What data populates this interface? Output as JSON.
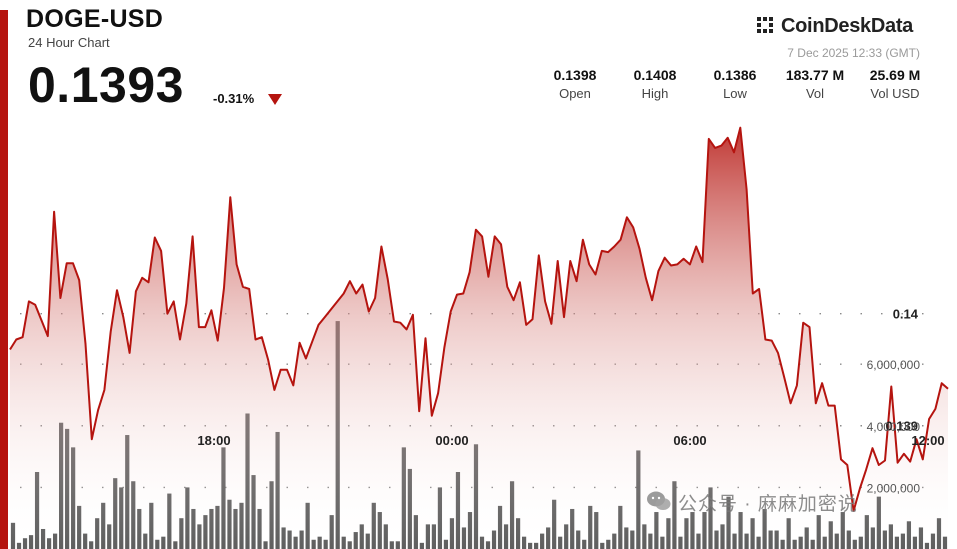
{
  "header": {
    "symbol": "DOGE-USD",
    "subtitle": "24 Hour Chart",
    "price": "0.1393",
    "change": "-0.31%"
  },
  "brand": {
    "name": "CoinDeskData",
    "timestamp": "7 Dec 2025 12:33 (GMT)"
  },
  "stats": [
    {
      "value": "0.1398",
      "label": "Open"
    },
    {
      "value": "0.1408",
      "label": "High"
    },
    {
      "value": "0.1386",
      "label": "Low"
    },
    {
      "value": "183.77 M",
      "label": "Vol"
    },
    {
      "value": "25.69 M",
      "label": "Vol USD"
    }
  ],
  "colors": {
    "accent": "#b5140f",
    "line": "#b5140f",
    "volume_bar": "#5f5f5f",
    "text": "#111111"
  },
  "watermark": "公众号 · 麻麻加密说",
  "chart_data": {
    "type": "area",
    "price_axis": {
      "ticks": [
        0.14,
        0.139
      ],
      "tick_labels": [
        "0.14",
        "0.139"
      ]
    },
    "volume_axis": {
      "ticks": [
        2000000,
        4000000,
        6000000
      ],
      "tick_labels": [
        "2,000,000",
        "4,000,000",
        "6,000,000"
      ]
    },
    "time_labels": [
      "18:00",
      "00:00",
      "06:00",
      "12:00"
    ],
    "price_series": [
      0.13968,
      0.13977,
      0.13979,
      0.14011,
      0.14008,
      0.13994,
      0.1398,
      0.14091,
      0.14014,
      0.14045,
      0.14045,
      0.1403,
      0.13973,
      0.13888,
      0.13914,
      0.13932,
      0.13984,
      0.14021,
      0.13997,
      0.13965,
      0.1402,
      0.14032,
      0.14028,
      0.14068,
      0.14056,
      0.14,
      0.14011,
      0.13977,
      0.14009,
      0.14069,
      0.13988,
      0.13988,
      0.14003,
      0.13976,
      0.14023,
      0.14104,
      0.14044,
      0.14024,
      0.14022,
      0.13977,
      0.13979,
      0.13959,
      0.13932,
      0.1395,
      0.1395,
      0.13936,
      0.13974,
      0.1396,
      0.13975,
      0.1399,
      0.13997,
      0.14004,
      0.14011,
      0.14018,
      0.14029,
      0.14018,
      0.14026,
      0.14002,
      0.14014,
      0.1406,
      0.14031,
      0.13993,
      0.13992,
      0.13986,
      0.13999,
      0.13913,
      0.13978,
      0.13909,
      0.13929,
      0.1397,
      0.14002,
      0.14017,
      0.14018,
      0.14037,
      0.14075,
      0.14069,
      0.14033,
      0.14069,
      0.14062,
      0.14024,
      0.14012,
      0.14028,
      0.1399,
      0.13995,
      0.14052,
      0.14011,
      0.13991,
      0.14047,
      0.13997,
      0.14047,
      0.14029,
      0.14066,
      0.14044,
      0.14035,
      0.14056,
      0.14055,
      0.1406,
      0.14066,
      0.14086,
      0.14077,
      0.14058,
      0.14032,
      0.14012,
      0.14038,
      0.1405,
      0.14043,
      0.14044,
      0.14049,
      0.14044,
      0.1406,
      0.14046,
      0.14156,
      0.14148,
      0.1415,
      0.14157,
      0.14144,
      0.14166,
      0.14111,
      0.14018,
      0.14022,
      0.13977,
      0.13976,
      0.13965,
      0.13943,
      0.1392,
      0.13936,
      0.13992,
      0.13988,
      0.1392,
      0.13938,
      0.13918,
      0.13918,
      0.1387,
      0.13865,
      0.13824,
      0.13844,
      0.13861,
      0.1388,
      0.13865,
      0.13869,
      0.13935,
      0.13867,
      0.13875,
      0.13868,
      0.13888,
      0.1387,
      0.13906,
      0.13915,
      0.13938,
      0.13933
    ],
    "volume_series": [
      850000,
      200000,
      350000,
      450000,
      2500000,
      650000,
      350000,
      500000,
      4100000,
      3900000,
      3300000,
      1400000,
      500000,
      250000,
      1000000,
      1500000,
      800000,
      2300000,
      2000000,
      3700000,
      2200000,
      1300000,
      500000,
      1500000,
      300000,
      400000,
      1800000,
      250000,
      1000000,
      2000000,
      1300000,
      800000,
      1100000,
      1300000,
      1400000,
      3300000,
      1600000,
      1300000,
      1500000,
      4400000,
      2400000,
      1300000,
      250000,
      2200000,
      3800000,
      700000,
      600000,
      400000,
      600000,
      1500000,
      300000,
      400000,
      300000,
      1100000,
      7400000,
      400000,
      250000,
      550000,
      800000,
      500000,
      1500000,
      1200000,
      800000,
      250000,
      250000,
      3300000,
      2600000,
      1100000,
      200000,
      800000,
      800000,
      2000000,
      300000,
      1000000,
      2500000,
      700000,
      1200000,
      3400000,
      400000,
      250000,
      600000,
      1400000,
      800000,
      2200000,
      1000000,
      400000,
      200000,
      200000,
      500000,
      700000,
      1600000,
      400000,
      800000,
      1300000,
      600000,
      300000,
      1400000,
      1200000,
      200000,
      300000,
      500000,
      1400000,
      700000,
      600000,
      3200000,
      800000,
      500000,
      1200000,
      400000,
      1000000,
      2200000,
      400000,
      1000000,
      1200000,
      500000,
      1200000,
      2000000,
      600000,
      800000,
      1700000,
      500000,
      1200000,
      500000,
      1000000,
      400000,
      1300000,
      600000,
      600000,
      300000,
      1000000,
      300000,
      400000,
      700000,
      300000,
      1100000,
      400000,
      900000,
      500000,
      1200000,
      600000,
      300000,
      400000,
      1100000,
      700000,
      1700000,
      600000,
      800000,
      400000,
      500000,
      900000,
      400000,
      700000,
      200000,
      500000,
      1000000,
      400000
    ]
  }
}
